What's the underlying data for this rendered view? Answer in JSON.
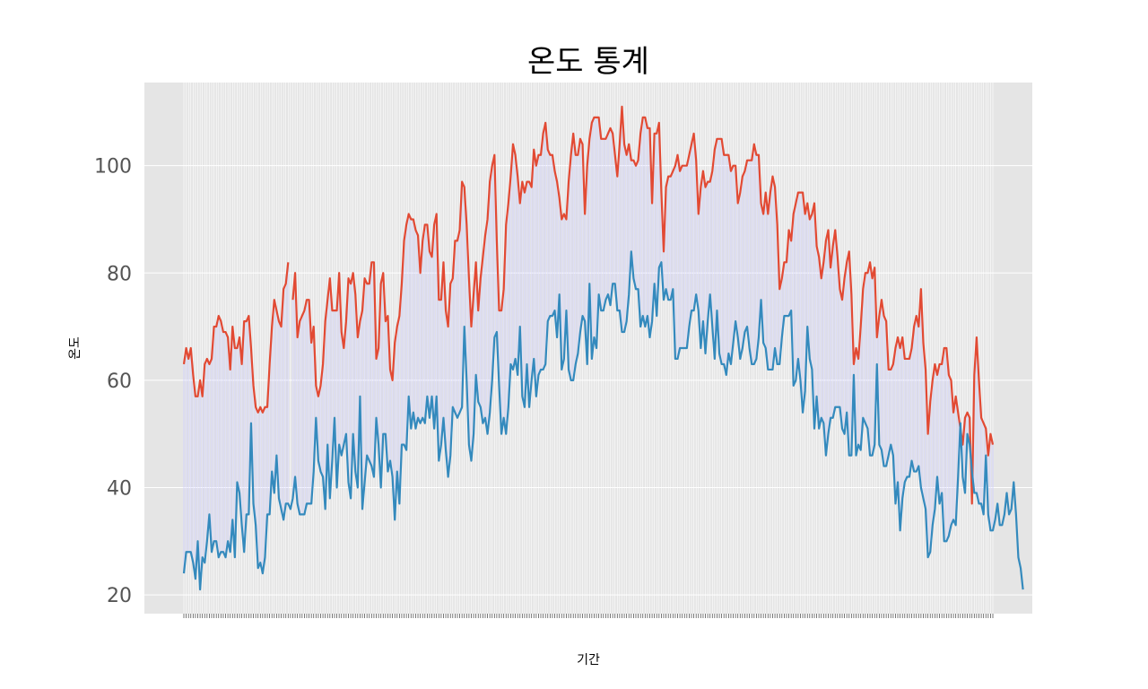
{
  "chart_data": {
    "type": "line",
    "title": "온도 통계",
    "xlabel": "기간",
    "ylabel": "온도",
    "ylim": [
      16.5,
      115.5
    ],
    "yticks": [
      20,
      40,
      60,
      80,
      100
    ],
    "grid": true,
    "legend": "none",
    "fill_between": true,
    "colors": {
      "high": "#e24a33",
      "low": "#348abd",
      "fill": "#9999ff",
      "background": "#e5e5e5",
      "grid": "#ffffff",
      "tick_text": "#555555"
    },
    "series": [
      {
        "key": "high",
        "values": [
          63,
          66,
          64,
          66,
          61,
          57,
          57,
          60,
          57,
          63,
          64,
          63,
          64,
          70,
          70,
          72,
          71,
          69,
          69,
          68,
          62,
          70,
          66,
          66,
          68,
          63,
          71,
          71,
          72,
          66,
          59,
          55,
          54,
          55,
          54,
          55,
          55,
          63,
          70,
          75,
          73,
          71,
          70,
          77,
          78,
          82,
          null,
          75,
          80,
          68,
          71,
          72,
          73,
          75,
          75,
          67,
          70,
          59,
          57,
          59,
          63,
          71,
          75,
          79,
          73,
          73,
          73,
          80,
          69,
          66,
          71,
          79,
          78,
          80,
          76,
          68,
          71,
          73,
          79,
          78,
          78,
          82,
          82,
          64,
          66,
          78,
          80,
          71,
          72,
          62,
          60,
          67,
          70,
          72,
          78,
          86,
          89,
          91,
          90,
          90,
          88,
          87,
          80,
          86,
          89,
          89,
          84,
          83,
          89,
          91,
          75,
          75,
          82,
          73,
          70,
          78,
          79,
          86,
          86,
          88,
          97,
          96,
          89,
          79,
          70,
          76,
          82,
          73,
          79,
          83,
          87,
          90,
          97,
          100,
          102,
          86,
          73,
          73,
          77,
          89,
          93,
          98,
          104,
          102,
          98,
          93,
          97,
          95,
          97,
          97,
          96,
          103,
          100,
          102,
          102,
          106,
          108,
          103,
          102,
          102,
          99,
          97,
          94,
          90,
          91,
          90,
          97,
          102,
          106,
          102,
          102,
          105,
          104,
          91,
          100,
          105,
          108,
          109,
          109,
          109,
          105,
          105,
          105,
          106,
          107,
          106,
          102,
          98,
          104,
          111,
          104,
          102,
          104,
          101,
          101,
          100,
          101,
          106,
          109,
          109,
          107,
          107,
          93,
          106,
          106,
          108,
          95,
          84,
          96,
          98,
          98,
          99,
          100,
          102,
          99,
          100,
          100,
          100,
          102,
          104,
          106,
          101,
          91,
          96,
          99,
          96,
          97,
          97,
          99,
          103,
          105,
          105,
          105,
          102,
          102,
          102,
          99,
          100,
          100,
          93,
          95,
          98,
          99,
          101,
          101,
          101,
          104,
          102,
          102,
          93,
          91,
          95,
          91,
          95,
          98,
          96,
          89,
          77,
          79,
          82,
          82,
          88,
          86,
          91,
          93,
          95,
          95,
          95,
          91,
          93,
          90,
          91,
          93,
          85,
          83,
          79,
          82,
          86,
          88,
          81,
          85,
          88,
          83,
          77,
          75,
          79,
          82,
          84,
          76,
          63,
          66,
          64,
          70,
          77,
          80,
          80,
          82,
          79,
          81,
          68,
          72,
          75,
          72,
          71,
          62,
          62,
          63,
          66,
          68,
          66,
          68,
          64,
          64,
          64,
          66,
          70,
          72,
          70,
          77,
          67,
          62,
          50,
          56,
          60,
          63,
          61,
          63,
          63,
          66,
          66,
          61,
          60,
          54,
          57,
          54,
          51,
          48,
          53,
          54,
          53,
          37,
          61,
          68,
          60,
          53,
          52,
          51,
          46,
          50,
          48
        ]
      },
      {
        "key": "low",
        "values": [
          24,
          28,
          28,
          28,
          26,
          23,
          30,
          21,
          27,
          26,
          30,
          35,
          28,
          30,
          30,
          27,
          28,
          28,
          27,
          30,
          28,
          34,
          27,
          41,
          39,
          33,
          28,
          35,
          35,
          52,
          37,
          33,
          25,
          26,
          24,
          27,
          35,
          35,
          43,
          39,
          46,
          38,
          36,
          34,
          37,
          37,
          36,
          38,
          42,
          37,
          35,
          35,
          35,
          37,
          37,
          37,
          43,
          53,
          45,
          43,
          42,
          36,
          48,
          38,
          45,
          53,
          40,
          48,
          46,
          48,
          50,
          41,
          38,
          50,
          43,
          40,
          57,
          36,
          41,
          46,
          45,
          44,
          42,
          53,
          48,
          40,
          50,
          50,
          43,
          45,
          42,
          34,
          43,
          37,
          48,
          48,
          47,
          57,
          51,
          54,
          51,
          53,
          52,
          53,
          52,
          57,
          53,
          57,
          51,
          57,
          45,
          48,
          53,
          47,
          42,
          46,
          55,
          54,
          53,
          54,
          55,
          70,
          60,
          48,
          45,
          50,
          61,
          56,
          55,
          52,
          53,
          50,
          54,
          60,
          68,
          69,
          59,
          50,
          53,
          50,
          55,
          63,
          62,
          64,
          61,
          70,
          57,
          55,
          63,
          55,
          60,
          64,
          57,
          61,
          62,
          62,
          63,
          71,
          72,
          72,
          73,
          68,
          76,
          62,
          64,
          73,
          62,
          60,
          60,
          63,
          65,
          69,
          72,
          71,
          63,
          78,
          64,
          68,
          66,
          76,
          73,
          73,
          75,
          76,
          74,
          78,
          78,
          73,
          73,
          69,
          69,
          71,
          76,
          84,
          79,
          77,
          77,
          70,
          72,
          70,
          72,
          68,
          71,
          78,
          72,
          81,
          82,
          75,
          77,
          75,
          75,
          77,
          64,
          64,
          66,
          66,
          66,
          66,
          70,
          73,
          73,
          76,
          73,
          66,
          71,
          65,
          71,
          76,
          70,
          64,
          73,
          65,
          63,
          63,
          61,
          65,
          63,
          67,
          71,
          68,
          64,
          66,
          69,
          70,
          66,
          63,
          63,
          64,
          68,
          75,
          67,
          66,
          62,
          62,
          62,
          66,
          63,
          63,
          68,
          72,
          72,
          72,
          73,
          59,
          60,
          64,
          60,
          54,
          58,
          70,
          64,
          62,
          51,
          57,
          51,
          53,
          52,
          46,
          50,
          53,
          53,
          55,
          55,
          55,
          51,
          50,
          54,
          46,
          46,
          61,
          46,
          48,
          47,
          53,
          52,
          51,
          46,
          46,
          48,
          63,
          48,
          47,
          44,
          44,
          46,
          48,
          46,
          37,
          41,
          32,
          38,
          41,
          42,
          42,
          45,
          43,
          43,
          44,
          40,
          38,
          36,
          27,
          28,
          33,
          36,
          42,
          37,
          39,
          30,
          30,
          31,
          33,
          34,
          33,
          42,
          52,
          42,
          39,
          50,
          48,
          43,
          39,
          39,
          37,
          37,
          35,
          46,
          35,
          32,
          32,
          34,
          37,
          33,
          33,
          35,
          39,
          35,
          36,
          41,
          35,
          27,
          25,
          21
        ]
      }
    ]
  }
}
